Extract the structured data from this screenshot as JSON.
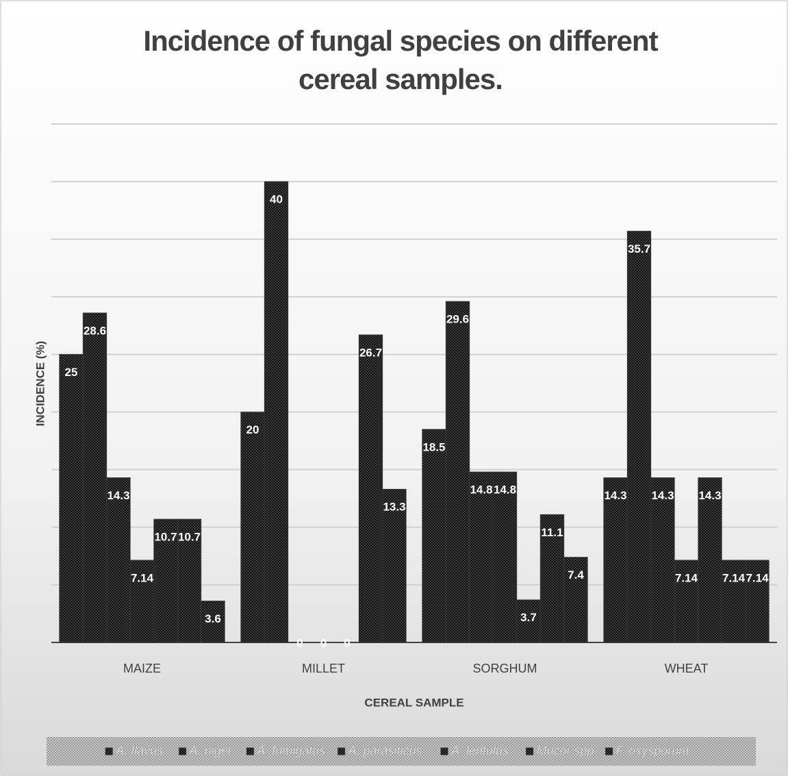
{
  "chart_data": {
    "type": "bar",
    "title": "Incidence of fungal species on different cereal samples.",
    "x_label": "CEREAL SAMPLE",
    "y_label": "INCIDENCE (%)",
    "categories": [
      "MAIZE",
      "MILLET",
      "SORGHUM",
      "WHEAT"
    ],
    "series": [
      {
        "name": "A. flavus",
        "color": "#1e1e1e",
        "values": [
          25,
          20,
          18.5,
          14.3
        ]
      },
      {
        "name": "A. niger",
        "color": "#1e1e1e",
        "values": [
          28.6,
          40,
          29.6,
          35.7
        ]
      },
      {
        "name": "A. fumigatus",
        "color": "#1e1e1e",
        "values": [
          14.3,
          0,
          14.8,
          14.3
        ]
      },
      {
        "name": "A. parasiticus",
        "color": "#1e1e1e",
        "values": [
          7.14,
          0,
          14.8,
          7.14
        ]
      },
      {
        "name": "A. lentulus",
        "color": "#1e1e1e",
        "values": [
          10.7,
          0,
          3.7,
          14.3
        ]
      },
      {
        "name": "Mucor spp.",
        "color": "#1e1e1e",
        "values": [
          10.7,
          26.7,
          11.1,
          7.14
        ]
      },
      {
        "name": "F. oxysporum",
        "color": "#1e1e1e",
        "values": [
          3.6,
          13.3,
          7.4,
          7.14
        ]
      }
    ],
    "ylim": [
      0,
      45
    ],
    "yticks": [
      0,
      5,
      10,
      15,
      20,
      25,
      30,
      35,
      40,
      45
    ],
    "grid": true,
    "legend": "bottom"
  }
}
